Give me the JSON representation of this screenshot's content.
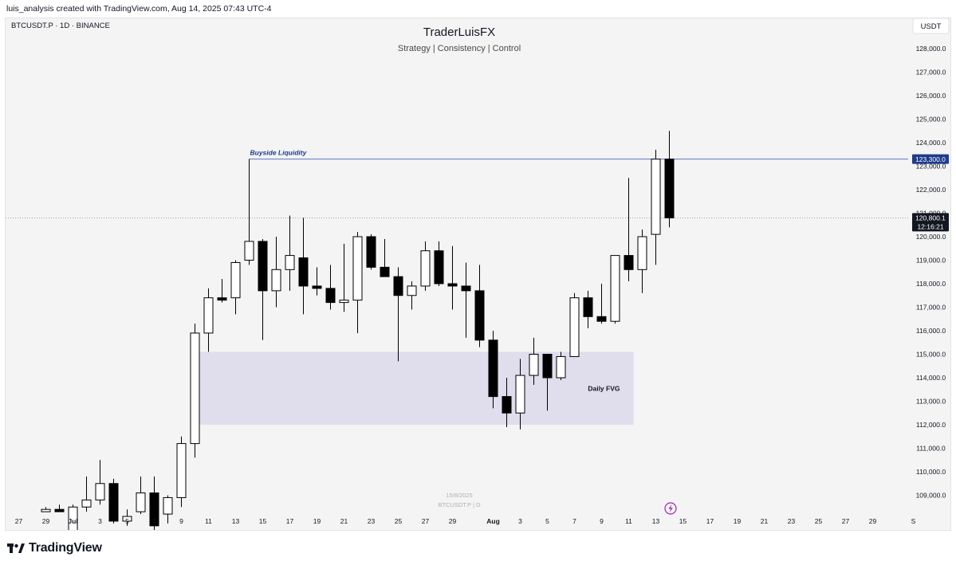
{
  "header": {
    "attribution": "luis_analysis created with TradingView.com, Aug 14, 2025 07:43 UTC-4"
  },
  "chart": {
    "symbol_line": "BTCUSDT.P · 1D · BINANCE",
    "title": "TraderLuisFX",
    "subtitle": "Strategy | Consistency | Control",
    "currency_button": "USDT",
    "watermark_date": "15/8/2025",
    "watermark_symbol": "BTCUSDT.P | D",
    "buyside_label": "Buyside Liquidity",
    "fvg_label": "Daily FVG",
    "buyside_price_tag": "123,300.0",
    "last_price_tag": "120,800.1",
    "countdown_tag": "12:16:21",
    "colors": {
      "bull": "#ffffff",
      "bear": "#000000",
      "buyside_line": "#5b75c4",
      "buyside_text": "#1f3a8a",
      "fvg_fill": "#dcd8ea",
      "tag_dark": "#131722",
      "tag_blue": "#1e3a8a"
    },
    "lightning_icon": "lightning-icon"
  },
  "footer": {
    "brand": "TradingView"
  },
  "chart_data": {
    "type": "candlestick",
    "ylim": [
      108300,
      129000
    ],
    "y_ticks": [
      "128,000.0",
      "127,000.0",
      "126,000.0",
      "125,000.0",
      "124,000.0",
      "123,000.0",
      "122,000.0",
      "121,000.0",
      "120,000.0",
      "119,000.0",
      "118,000.0",
      "117,000.0",
      "116,000.0",
      "115,000.0",
      "114,000.0",
      "113,000.0",
      "112,000.0",
      "111,000.0",
      "110,000.0",
      "109,000.0"
    ],
    "y_tick_values": [
      128000,
      127000,
      126000,
      125000,
      124000,
      123000,
      122000,
      121000,
      120000,
      119000,
      118000,
      117000,
      116000,
      115000,
      114000,
      113000,
      112000,
      111000,
      110000,
      109000
    ],
    "x_ticks": [
      {
        "label": "27",
        "day": -4
      },
      {
        "label": "29",
        "day": -2
      },
      {
        "label": "Jul",
        "day": 0,
        "bold": true
      },
      {
        "label": "3",
        "day": 2
      },
      {
        "label": "5",
        "day": 4
      },
      {
        "label": "7",
        "day": 6
      },
      {
        "label": "9",
        "day": 8
      },
      {
        "label": "11",
        "day": 10
      },
      {
        "label": "13",
        "day": 12
      },
      {
        "label": "15",
        "day": 14
      },
      {
        "label": "17",
        "day": 16
      },
      {
        "label": "19",
        "day": 18
      },
      {
        "label": "21",
        "day": 20
      },
      {
        "label": "23",
        "day": 22
      },
      {
        "label": "25",
        "day": 24
      },
      {
        "label": "27",
        "day": 26
      },
      {
        "label": "29",
        "day": 28
      },
      {
        "label": "Aug",
        "day": 31,
        "bold": true
      },
      {
        "label": "3",
        "day": 33
      },
      {
        "label": "5",
        "day": 35
      },
      {
        "label": "7",
        "day": 37
      },
      {
        "label": "9",
        "day": 39
      },
      {
        "label": "11",
        "day": 41
      },
      {
        "label": "13",
        "day": 43
      },
      {
        "label": "15",
        "day": 45
      },
      {
        "label": "17",
        "day": 47
      },
      {
        "label": "19",
        "day": 49
      },
      {
        "label": "21",
        "day": 51
      },
      {
        "label": "23",
        "day": 53
      },
      {
        "label": "25",
        "day": 55
      },
      {
        "label": "27",
        "day": 57
      },
      {
        "label": "29",
        "day": 59
      },
      {
        "label": "S",
        "day": 62
      }
    ],
    "candles": [
      {
        "day": -2,
        "o": 108300,
        "h": 108500,
        "l": 108300,
        "c": 108400
      },
      {
        "day": -1,
        "o": 108400,
        "h": 108600,
        "l": 108300,
        "c": 108300
      },
      {
        "day": 0,
        "o": 107300,
        "h": 108600,
        "l": 107100,
        "c": 108500
      },
      {
        "day": 1,
        "o": 108500,
        "h": 109800,
        "l": 108300,
        "c": 108800
      },
      {
        "day": 2,
        "o": 108800,
        "h": 110500,
        "l": 108600,
        "c": 109500
      },
      {
        "day": 3,
        "o": 109500,
        "h": 109700,
        "l": 107800,
        "c": 107900
      },
      {
        "day": 4,
        "o": 107900,
        "h": 108400,
        "l": 107700,
        "c": 108100
      },
      {
        "day": 5,
        "o": 108300,
        "h": 109800,
        "l": 108200,
        "c": 109100
      },
      {
        "day": 6,
        "o": 109100,
        "h": 109800,
        "l": 107500,
        "c": 107700
      },
      {
        "day": 7,
        "o": 108200,
        "h": 109000,
        "l": 107800,
        "c": 108900
      },
      {
        "day": 8,
        "o": 108900,
        "h": 111500,
        "l": 108500,
        "c": 111200
      },
      {
        "day": 9,
        "o": 111200,
        "h": 116300,
        "l": 110600,
        "c": 115900
      },
      {
        "day": 10,
        "o": 115900,
        "h": 117800,
        "l": 115100,
        "c": 117400
      },
      {
        "day": 11,
        "o": 117400,
        "h": 118200,
        "l": 117200,
        "c": 117300
      },
      {
        "day": 12,
        "o": 117400,
        "h": 119000,
        "l": 116700,
        "c": 118900
      },
      {
        "day": 13,
        "o": 119000,
        "h": 123300,
        "l": 118800,
        "c": 119800
      },
      {
        "day": 14,
        "o": 119800,
        "h": 119900,
        "l": 115600,
        "c": 117700
      },
      {
        "day": 15,
        "o": 117700,
        "h": 120000,
        "l": 117000,
        "c": 118600
      },
      {
        "day": 16,
        "o": 118600,
        "h": 120900,
        "l": 117700,
        "c": 119200
      },
      {
        "day": 17,
        "o": 119100,
        "h": 120800,
        "l": 116700,
        "c": 117900
      },
      {
        "day": 18,
        "o": 117900,
        "h": 118700,
        "l": 117500,
        "c": 117800
      },
      {
        "day": 19,
        "o": 117800,
        "h": 118800,
        "l": 116900,
        "c": 117200
      },
      {
        "day": 20,
        "o": 117200,
        "h": 119700,
        "l": 116800,
        "c": 117300
      },
      {
        "day": 21,
        "o": 117300,
        "h": 120200,
        "l": 115900,
        "c": 120000
      },
      {
        "day": 22,
        "o": 120000,
        "h": 120100,
        "l": 118600,
        "c": 118700
      },
      {
        "day": 23,
        "o": 118700,
        "h": 119900,
        "l": 118300,
        "c": 118300
      },
      {
        "day": 24,
        "o": 118300,
        "h": 118700,
        "l": 114700,
        "c": 117500
      },
      {
        "day": 25,
        "o": 117500,
        "h": 118100,
        "l": 116900,
        "c": 117900
      },
      {
        "day": 26,
        "o": 117900,
        "h": 119800,
        "l": 117700,
        "c": 119400
      },
      {
        "day": 27,
        "o": 119400,
        "h": 119800,
        "l": 117900,
        "c": 118000
      },
      {
        "day": 28,
        "o": 118000,
        "h": 119600,
        "l": 116900,
        "c": 117900
      },
      {
        "day": 29,
        "o": 117900,
        "h": 118900,
        "l": 115700,
        "c": 117700
      },
      {
        "day": 30,
        "o": 117700,
        "h": 118800,
        "l": 115300,
        "c": 115600
      },
      {
        "day": 31,
        "o": 115600,
        "h": 116000,
        "l": 112700,
        "c": 113200
      },
      {
        "day": 32,
        "o": 113200,
        "h": 114000,
        "l": 111900,
        "c": 112500
      },
      {
        "day": 33,
        "o": 112500,
        "h": 114800,
        "l": 111800,
        "c": 114100
      },
      {
        "day": 34,
        "o": 114100,
        "h": 115700,
        "l": 113700,
        "c": 115000
      },
      {
        "day": 35,
        "o": 115000,
        "h": 115000,
        "l": 112600,
        "c": 114000
      },
      {
        "day": 36,
        "o": 114000,
        "h": 115100,
        "l": 113900,
        "c": 114900
      },
      {
        "day": 37,
        "o": 114900,
        "h": 117600,
        "l": 114900,
        "c": 117400
      },
      {
        "day": 38,
        "o": 117400,
        "h": 117700,
        "l": 116100,
        "c": 116600
      },
      {
        "day": 39,
        "o": 116600,
        "h": 118000,
        "l": 116300,
        "c": 116400
      },
      {
        "day": 40,
        "o": 116400,
        "h": 119200,
        "l": 116300,
        "c": 119200
      },
      {
        "day": 41,
        "o": 119200,
        "h": 122500,
        "l": 118100,
        "c": 118600
      },
      {
        "day": 42,
        "o": 118600,
        "h": 120300,
        "l": 117600,
        "c": 120000
      },
      {
        "day": 43,
        "o": 120100,
        "h": 123700,
        "l": 118800,
        "c": 123300
      },
      {
        "day": 44,
        "o": 123300,
        "h": 124500,
        "l": 120400,
        "c": 120800
      }
    ],
    "buyside_liquidity": {
      "price": 123300,
      "start_day": 13
    },
    "fvg": {
      "top": 115100,
      "bottom": 112000,
      "start_day": 9,
      "end_day": 41
    },
    "last_price": 120800.1
  }
}
